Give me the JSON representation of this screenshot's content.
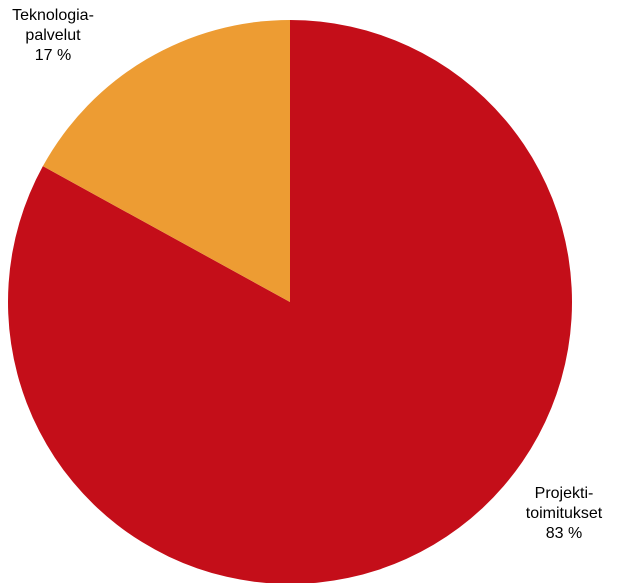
{
  "chart_data": {
    "type": "pie",
    "slices": [
      {
        "label_lines": [
          "Projekti-",
          "toimitukset"
        ],
        "value_label": "83 %",
        "value": 83,
        "color": "#c40e19"
      },
      {
        "label_lines": [
          "Teknologia-",
          "palvelut"
        ],
        "value_label": "17 %",
        "value": 17,
        "color": "#ed9c33"
      }
    ]
  }
}
